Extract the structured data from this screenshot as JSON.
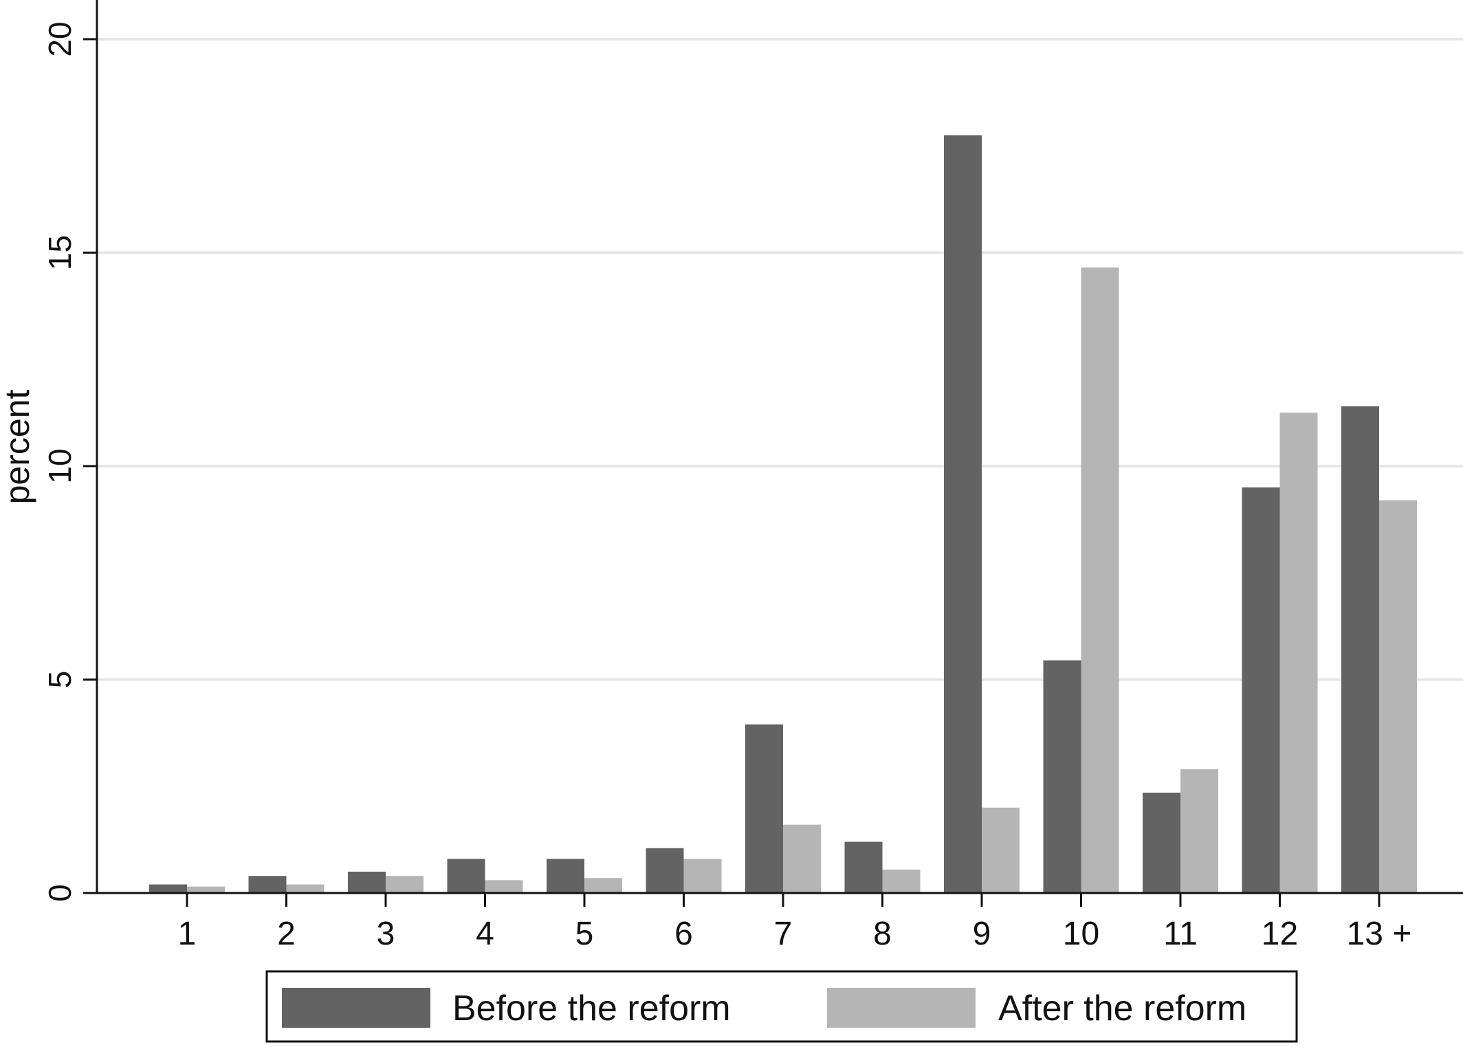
{
  "chart_data": {
    "type": "bar",
    "title": "",
    "xlabel": "",
    "ylabel": "percent",
    "ylim": [
      0,
      20
    ],
    "yticks": [
      0,
      5,
      10,
      15,
      20
    ],
    "grid": true,
    "categories": [
      "1",
      "2",
      "3",
      "4",
      "5",
      "6",
      "7",
      "8",
      "9",
      "10",
      "11",
      "12",
      "13 +"
    ],
    "series": [
      {
        "name": "Before the reform",
        "color": "#636363",
        "values": [
          0.2,
          0.4,
          0.5,
          0.8,
          0.8,
          1.05,
          3.95,
          1.2,
          17.75,
          5.45,
          2.35,
          9.5,
          11.4
        ]
      },
      {
        "name": "After the reform",
        "color": "#b5b5b6",
        "values": [
          0.15,
          0.2,
          0.4,
          0.3,
          0.35,
          0.8,
          1.6,
          0.55,
          2.0,
          14.65,
          2.9,
          11.25,
          9.2
        ]
      }
    ],
    "legend": {
      "position": "bottom",
      "items": [
        "Before the reform",
        "After the reform"
      ]
    },
    "colors": {
      "grid": "#e6e6e6",
      "axis": "#111111",
      "background": "#ffffff"
    }
  }
}
